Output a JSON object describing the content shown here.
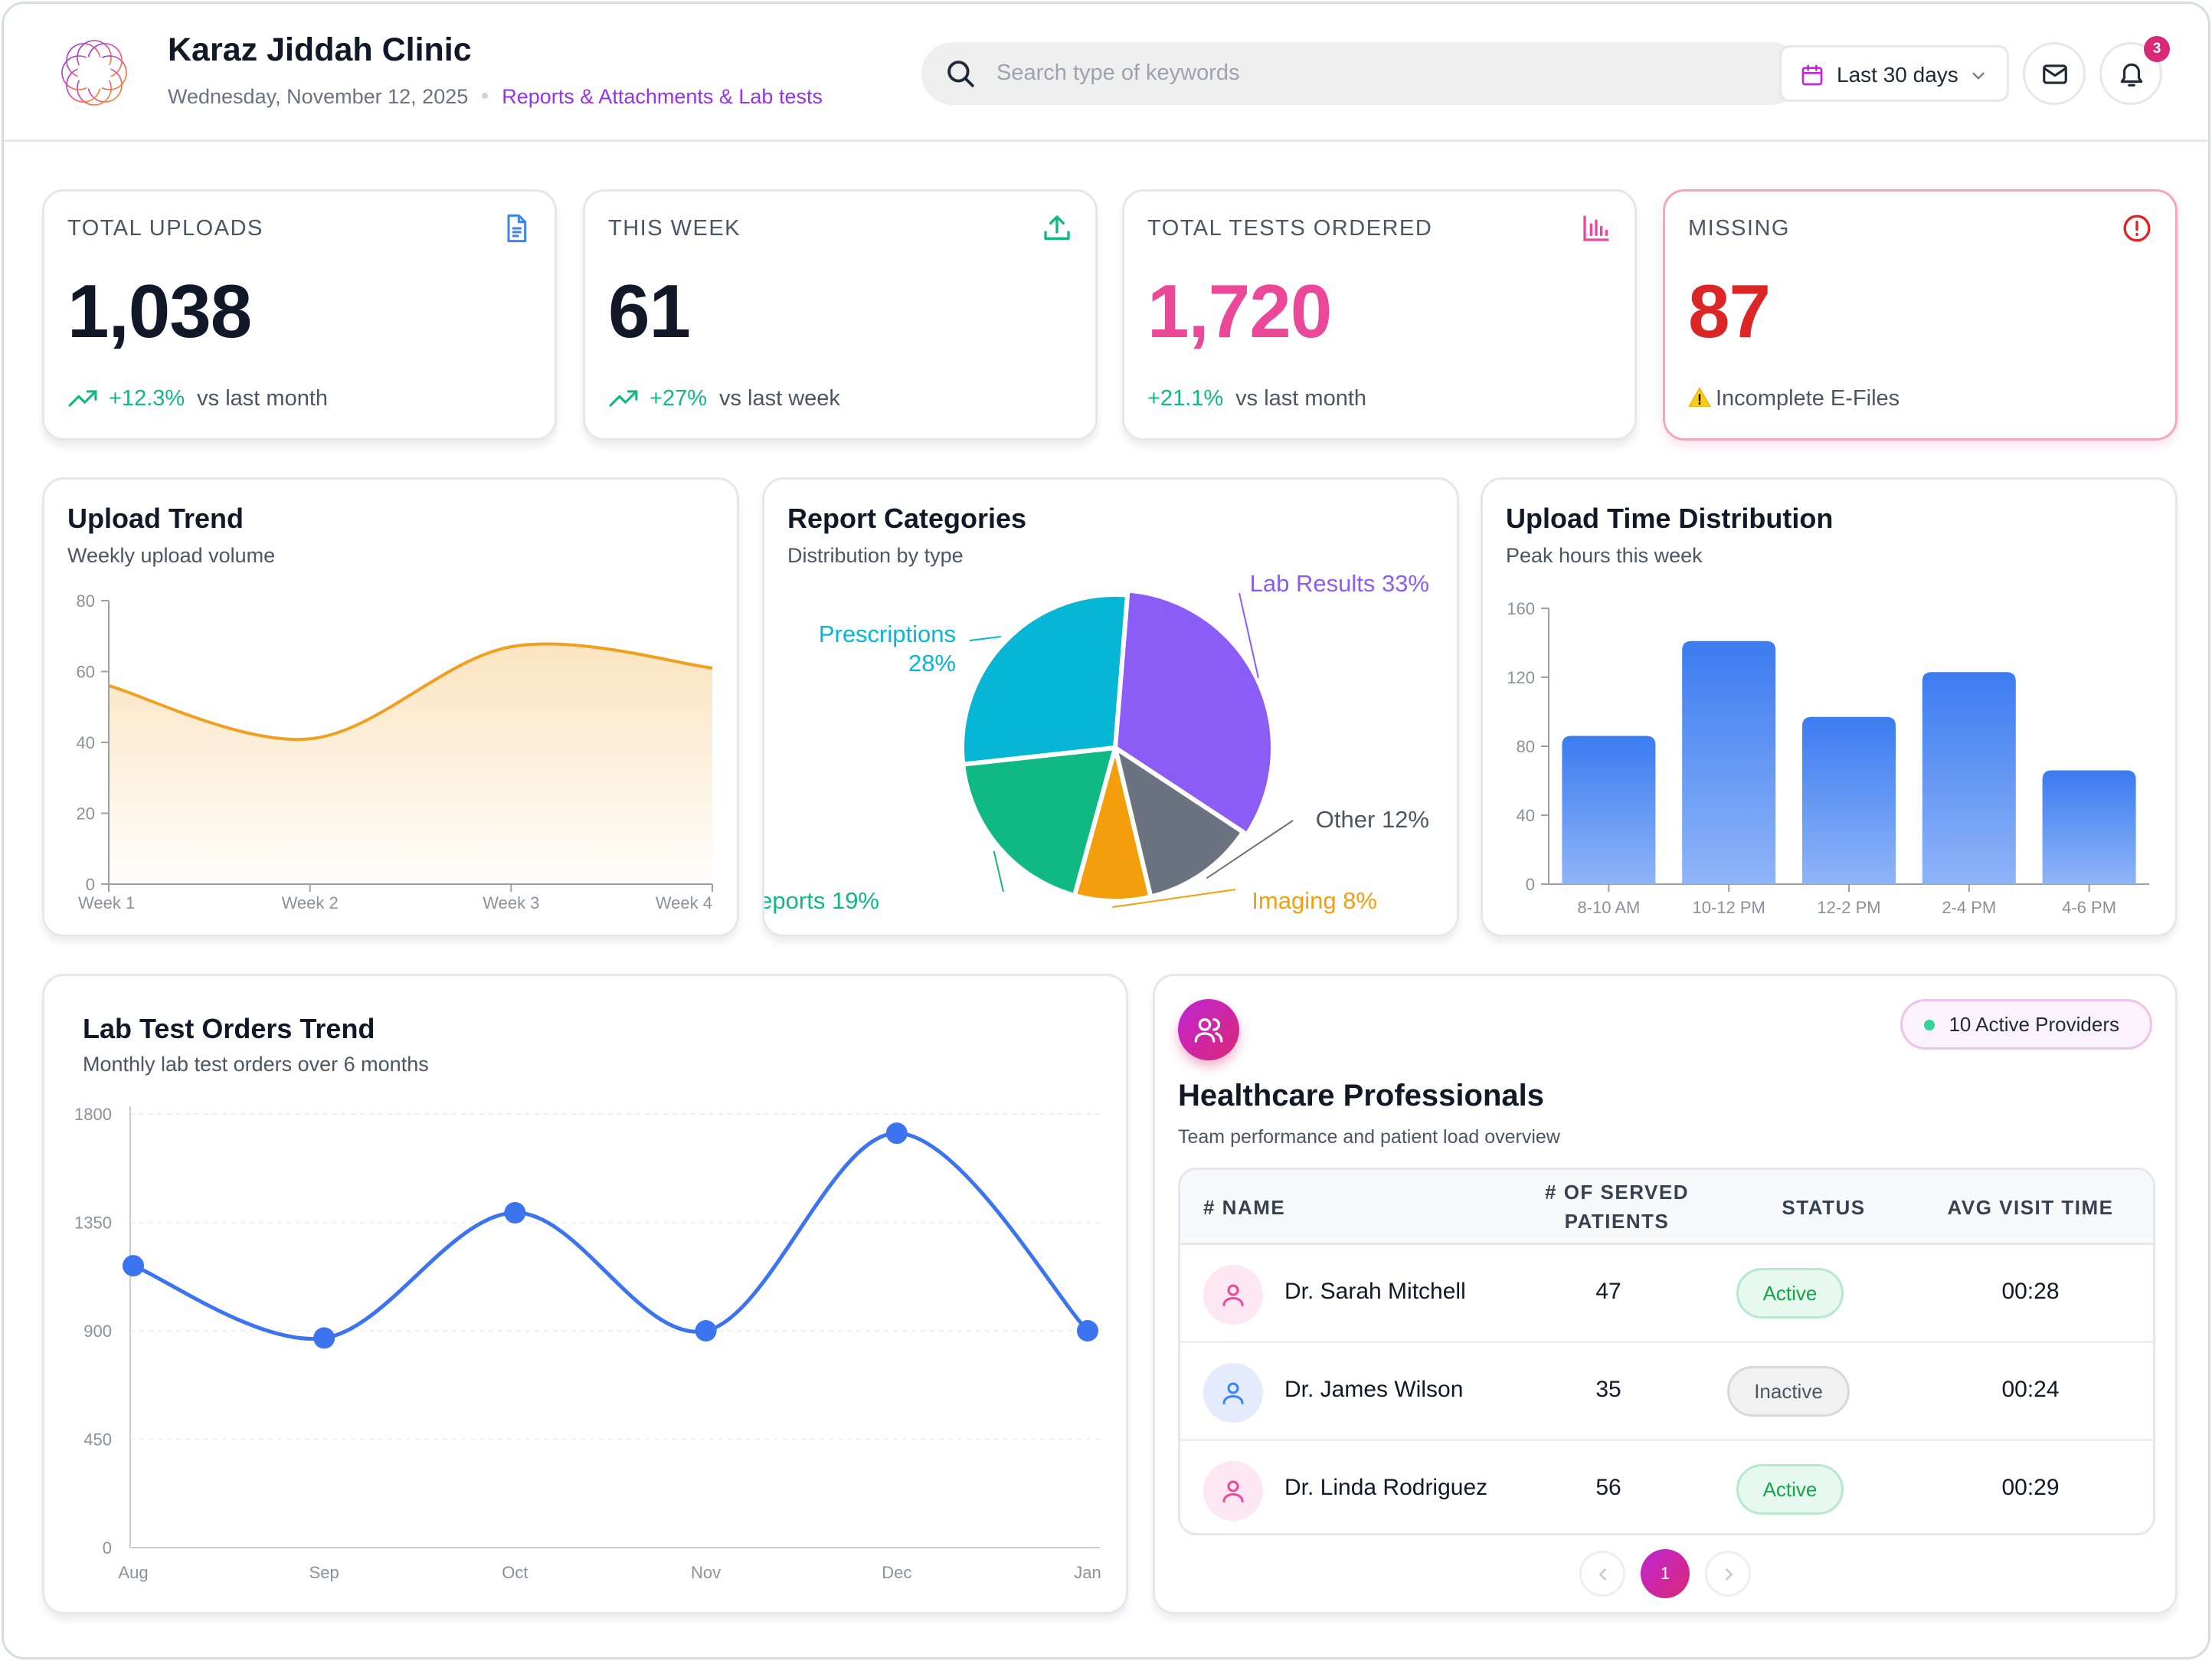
{
  "header": {
    "clinic_name": "Karaz Jiddah Clinic",
    "date": "Wednesday, November 12, 2025",
    "breadcrumb": "Reports & Attachments & Lab tests",
    "search_placeholder": "Search type of keywords",
    "date_range": "Last 30 days",
    "notification_count": "3"
  },
  "stats": [
    {
      "label": "TOTAL UPLOADS",
      "value": "1,038",
      "change": "+12.3%",
      "compare": "vs last month",
      "icon": "document-icon",
      "value_color": "#111827"
    },
    {
      "label": "THIS WEEK",
      "value": "61",
      "change": "+27%",
      "compare": "vs last week",
      "icon": "upload-icon",
      "value_color": "#111827"
    },
    {
      "label": "TOTAL TESTS ORDERED",
      "value": "1,720",
      "change": "+21.1%",
      "compare": "vs last month",
      "icon": "bar-chart-icon",
      "value_color": "#ec4899"
    },
    {
      "label": "MISSING",
      "value": "87",
      "note": "Incomplete E-Files",
      "icon": "alert-circle-icon",
      "value_color": "#dc2626"
    }
  ],
  "upload_trend": {
    "title": "Upload Trend",
    "subtitle": "Weekly upload volume"
  },
  "report_categories": {
    "title": "Report Categories",
    "subtitle": "Distribution by type"
  },
  "upload_time": {
    "title": "Upload Time Distribution",
    "subtitle": "Peak hours this week"
  },
  "lab_orders": {
    "title": "Lab Test Orders Trend",
    "subtitle": "Monthly lab test orders over 6 months"
  },
  "chart_data": [
    {
      "type": "area",
      "title": "Upload Trend",
      "subtitle": "Weekly upload volume",
      "x": [
        "Week 1",
        "Week 2",
        "Week 3",
        "Week 4"
      ],
      "y_ticks": [
        0,
        20,
        40,
        60,
        80
      ],
      "ylim": [
        0,
        80
      ],
      "series": [
        {
          "values": [
            56,
            41,
            67,
            61
          ]
        }
      ],
      "color": "#f0a020",
      "grid": false
    },
    {
      "type": "pie",
      "title": "Report Categories",
      "subtitle": "Distribution by type",
      "slices": [
        {
          "label": "Lab Results",
          "value": 33,
          "color": "#8b5cf6"
        },
        {
          "label": "Other",
          "value": 12,
          "color": "#6b7280"
        },
        {
          "label": "Imaging",
          "value": 8,
          "color": "#f59e0b"
        },
        {
          "label": "CGM Reports",
          "value": 19,
          "color": "#10b981"
        },
        {
          "label": "Prescriptions",
          "value": 28,
          "color": "#06b6d4"
        }
      ]
    },
    {
      "type": "bar",
      "title": "Upload Time Distribution",
      "subtitle": "Peak hours this week",
      "categories": [
        "8-10 AM",
        "10-12 PM",
        "12-2 PM",
        "2-4 PM",
        "4-6 PM"
      ],
      "values": [
        86,
        141,
        97,
        123,
        66
      ],
      "y_ticks": [
        0,
        40,
        80,
        120,
        160
      ],
      "ylim": [
        0,
        160
      ],
      "color": "#3b82f6",
      "grid": false
    },
    {
      "type": "line",
      "title": "Lab Test Orders Trend",
      "subtitle": "Monthly lab test orders over 6 months",
      "x": [
        "Aug",
        "Sep",
        "Oct",
        "Nov",
        "Dec",
        "Jan"
      ],
      "series": [
        {
          "values": [
            1170,
            870,
            1390,
            900,
            1720,
            900
          ]
        }
      ],
      "y_ticks": [
        0,
        450,
        900,
        1350,
        1800
      ],
      "ylim": [
        0,
        1800
      ],
      "color": "#3b74ee",
      "grid": true
    }
  ],
  "professionals": {
    "title": "Healthcare Professionals",
    "subtitle": "Team performance and patient load overview",
    "active_providers": "10 Active Providers",
    "columns": [
      "# NAME",
      "# OF SERVED PATIENTS",
      "STATUS",
      "AVG VISIT TIME"
    ],
    "rows": [
      {
        "name": "Dr. Sarah Mitchell",
        "patients": "47",
        "status": "Active",
        "avg": "00:28",
        "avatar_color": "pink"
      },
      {
        "name": "Dr. James Wilson",
        "patients": "35",
        "status": "Inactive",
        "avg": "00:24",
        "avatar_color": "blue"
      },
      {
        "name": "Dr. Linda Rodriguez",
        "patients": "56",
        "status": "Active",
        "avg": "00:29",
        "avatar_color": "pink"
      }
    ],
    "current_page": "1"
  }
}
